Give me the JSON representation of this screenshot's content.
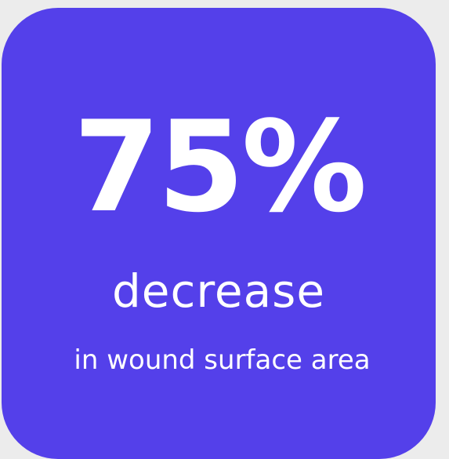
{
  "stat": {
    "value": "75%",
    "label": "decrease",
    "caption": "in wound surface area"
  },
  "colors": {
    "page_background": "#ececec",
    "card_background": "#5440ea",
    "text": "#ffffff"
  }
}
